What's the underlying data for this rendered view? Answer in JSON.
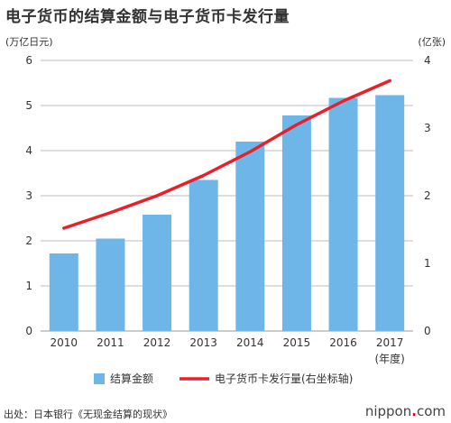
{
  "title": "电子货币的结算金额与电子货币卡发行量",
  "source": "出处：日本银行《无现金结算的现状》",
  "brand": {
    "left": "nippon",
    "dot": ".",
    "right": "com"
  },
  "colors": {
    "bar": "#6fb6e8",
    "line": "#e8202a",
    "grid": "#bbbbbb",
    "axis": "#999999"
  },
  "chart_data": {
    "type": "bar",
    "title": "电子货币的结算金额与电子货币卡发行量",
    "categories": [
      "2010",
      "2011",
      "2012",
      "2013",
      "2014",
      "2015",
      "2016",
      "2017"
    ],
    "xlabel": "(年度)",
    "y_left": {
      "unit": "(万亿日元)",
      "range": [
        0,
        6
      ],
      "ticks": [
        "0",
        "1",
        "2",
        "3",
        "4",
        "5",
        "6"
      ]
    },
    "y_right": {
      "unit": "(亿张)",
      "range": [
        0,
        4
      ],
      "ticks": [
        "0",
        "1",
        "2",
        "3",
        "4"
      ]
    },
    "series": [
      {
        "name": "结算金额",
        "type": "bar",
        "axis": "left",
        "values": [
          1.72,
          2.05,
          2.58,
          3.35,
          4.2,
          4.78,
          5.17,
          5.23
        ]
      },
      {
        "name": "电子货币卡发行量(右坐标轴)",
        "type": "line",
        "axis": "right",
        "values": [
          1.52,
          1.75,
          2.0,
          2.3,
          2.65,
          3.05,
          3.4,
          3.7
        ]
      }
    ],
    "grid": true,
    "legend": "bottom"
  }
}
